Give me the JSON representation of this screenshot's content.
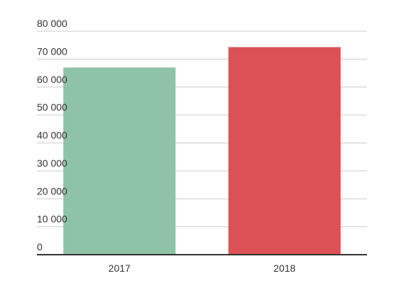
{
  "chart_data": {
    "type": "bar",
    "categories": [
      "2017",
      "2018"
    ],
    "values": [
      67000,
      74300
    ],
    "bar_colors": [
      "#8ec3a7",
      "#dc5156"
    ],
    "ylim": [
      0,
      80000
    ],
    "y_ticks": [
      {
        "value": 0,
        "label": "0"
      },
      {
        "value": 10000,
        "label": "10 000"
      },
      {
        "value": 20000,
        "label": "20 000"
      },
      {
        "value": 30000,
        "label": "30 000"
      },
      {
        "value": 40000,
        "label": "40 000"
      },
      {
        "value": 50000,
        "label": "50 000"
      },
      {
        "value": 60000,
        "label": "60 000"
      },
      {
        "value": 70000,
        "label": "70 000"
      },
      {
        "value": 80000,
        "label": "80 000"
      }
    ],
    "grid": true,
    "grid_color": "#cccccc",
    "axis_color": "#333333"
  }
}
